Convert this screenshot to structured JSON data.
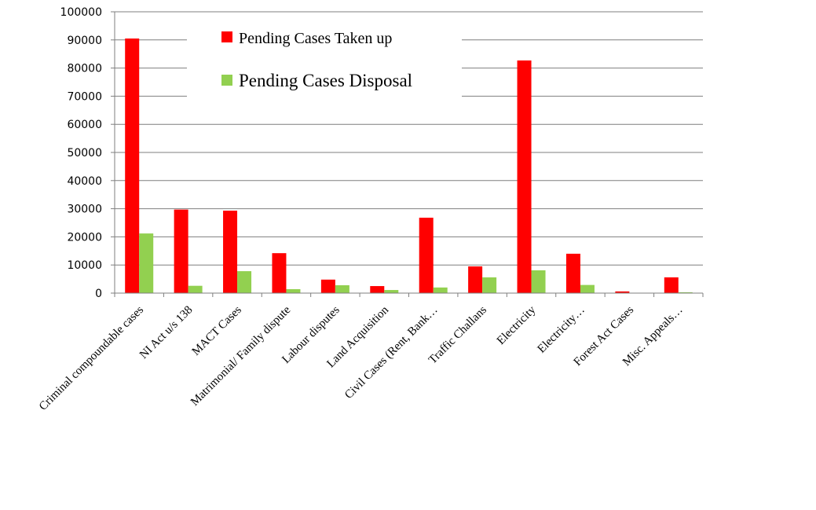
{
  "chart_data": {
    "type": "bar",
    "title": "",
    "xlabel": "",
    "ylabel": "",
    "ylim": [
      0,
      100000
    ],
    "yticks": [
      0,
      10000,
      20000,
      30000,
      40000,
      50000,
      60000,
      70000,
      80000,
      90000,
      100000
    ],
    "grid": true,
    "legend_position": "top-center",
    "categories": [
      "Criminal compoundable cases",
      "NI Act  u/s 138",
      "MACT Cases",
      "Matrimonial/ Family dispute",
      "Labour disputes",
      "Land Acquisition",
      "Civil Cases (Rent, Bank…",
      "Traffic Challans",
      "Electricity",
      "Electricity…",
      "Forest Act Cases",
      "Misc. Appeals…"
    ],
    "series": [
      {
        "name": "Pending Cases Taken up",
        "color": "#ff0000",
        "values": [
          90500,
          29700,
          29300,
          14200,
          4800,
          2500,
          26800,
          9500,
          82700,
          14000,
          600,
          5600
        ]
      },
      {
        "name": "Pending Cases Disposal",
        "color": "#92d050",
        "values": [
          21200,
          2600,
          7800,
          1400,
          2800,
          1100,
          2000,
          5600,
          8100,
          2900,
          0,
          300
        ]
      }
    ]
  }
}
